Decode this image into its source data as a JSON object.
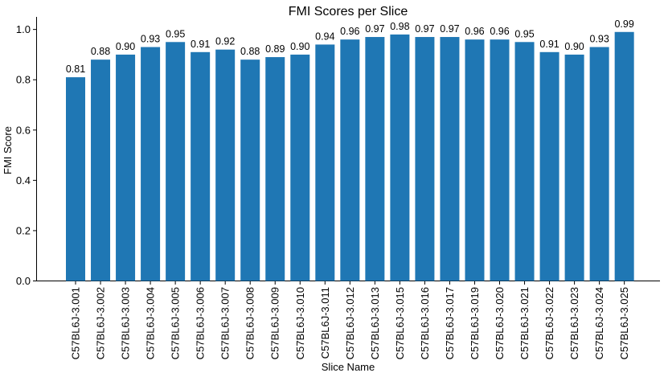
{
  "chart_data": {
    "type": "bar",
    "title": "FMI Scores per Slice",
    "xlabel": "Slice Name",
    "ylabel": "FMI Score",
    "ylim": [
      0,
      1.05
    ],
    "yticks": [
      "0.0",
      "0.2",
      "0.4",
      "0.6",
      "0.8",
      "1.0"
    ],
    "grid": false,
    "bar_color": "#1f77b4",
    "categories": [
      "C57BL6J-3.001",
      "C57BL6J-3.002",
      "C57BL6J-3.003",
      "C57BL6J-3.004",
      "C57BL6J-3.005",
      "C57BL6J-3.006",
      "C57BL6J-3.007",
      "C57BL6J-3.008",
      "C57BL6J-3.009",
      "C57BL6J-3.010",
      "C57BL6J-3.011",
      "C57BL6J-3.012",
      "C57BL6J-3.013",
      "C57BL6J-3.015",
      "C57BL6J-3.016",
      "C57BL6J-3.017",
      "C57BL6J-3.019",
      "C57BL6J-3.020",
      "C57BL6J-3.021",
      "C57BL6J-3.022",
      "C57BL6J-3.023",
      "C57BL6J-3.024",
      "C57BL6J-3.025"
    ],
    "values": [
      0.81,
      0.88,
      0.9,
      0.93,
      0.95,
      0.91,
      0.92,
      0.88,
      0.89,
      0.9,
      0.94,
      0.96,
      0.97,
      0.98,
      0.97,
      0.97,
      0.96,
      0.96,
      0.95,
      0.91,
      0.9,
      0.93,
      0.99
    ],
    "labels": [
      "0.81",
      "0.88",
      "0.90",
      "0.93",
      "0.95",
      "0.91",
      "0.92",
      "0.88",
      "0.89",
      "0.90",
      "0.94",
      "0.96",
      "0.97",
      "0.98",
      "0.97",
      "0.97",
      "0.96",
      "0.96",
      "0.95",
      "0.91",
      "0.90",
      "0.93",
      "0.99"
    ]
  }
}
